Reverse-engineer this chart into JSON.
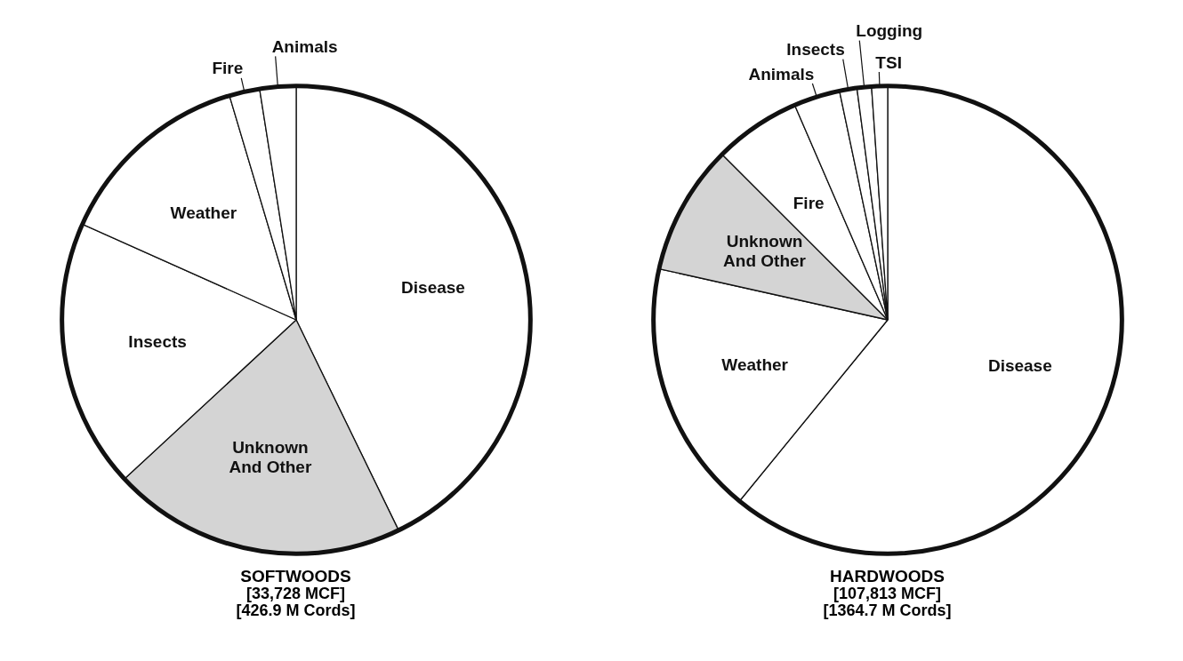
{
  "chart_data": [
    {
      "type": "pie",
      "title": "SOFTWOODS",
      "subtitle": "[33,728 MCF]",
      "annotations": [
        "[426.9 M Cords]"
      ],
      "categories": [
        "Disease",
        "Unknown And Other",
        "Insects",
        "Weather",
        "Fire",
        "Animals"
      ],
      "values": [
        42.8,
        20.3,
        18.6,
        13.7,
        2.1,
        2.5
      ],
      "colors": [
        "#ffffff",
        "#d4d4d4",
        "#ffffff",
        "#ffffff",
        "#ffffff",
        "#ffffff"
      ],
      "legend": false
    },
    {
      "type": "pie",
      "title": "HARDWOODS",
      "subtitle": "[107,813 MCF]",
      "annotations": [
        "[1364.7 M Cords]"
      ],
      "categories": [
        "Disease",
        "Weather",
        "Unknown And Other",
        "Fire",
        "Animals",
        "Insects",
        "Logging",
        "TSI"
      ],
      "values": [
        60.9,
        17.6,
        9.0,
        6.0,
        3.2,
        1.2,
        1.0,
        1.1
      ],
      "colors": [
        "#ffffff",
        "#ffffff",
        "#d4d4d4",
        "#ffffff",
        "#ffffff",
        "#ffffff",
        "#ffffff",
        "#ffffff"
      ],
      "legend": false
    }
  ]
}
